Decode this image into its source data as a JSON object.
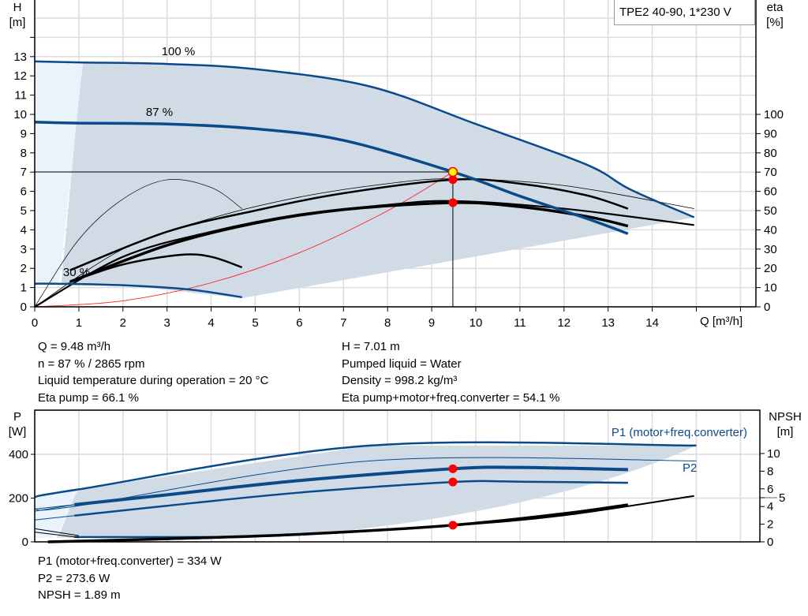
{
  "chart_data": [
    {
      "type": "line",
      "title": "TPE2 40-90, 1*230 V",
      "xlabel": "Q [m³/h]",
      "ylabel_left": {
        "name": "H",
        "unit": "[m]"
      },
      "ylabel_right": {
        "name": "eta",
        "unit": "[%]"
      },
      "xlim": [
        0,
        16.5
      ],
      "ylim_left": [
        0,
        15.9
      ],
      "ylim_right": [
        0,
        159
      ],
      "x_ticks": [
        0,
        1,
        2,
        3,
        4,
        5,
        6,
        7,
        8,
        9,
        10,
        11,
        12,
        13,
        14
      ],
      "y_ticks_left": [
        0,
        1,
        2,
        3,
        4,
        5,
        6,
        7,
        8,
        9,
        10,
        11,
        12,
        13
      ],
      "y_ticks_right": [
        0,
        10,
        20,
        30,
        40,
        50,
        60,
        70,
        80,
        90,
        100
      ],
      "grid": true,
      "speed_curves": [
        {
          "name": "100 %",
          "points": [
            [
              0,
              12.75
            ],
            [
              1,
              12.7
            ],
            [
              3,
              12.62
            ],
            [
              5,
              12.35
            ],
            [
              7.6,
              11.45
            ],
            [
              10,
              9.5
            ],
            [
              12.5,
              7.4
            ],
            [
              13.5,
              6.1
            ],
            [
              14.95,
              4.65
            ]
          ]
        },
        {
          "name": "87 %",
          "points": [
            [
              0,
              9.6
            ],
            [
              0.9,
              9.55
            ],
            [
              3,
              9.5
            ],
            [
              5,
              9.25
            ],
            [
              7,
              8.65
            ],
            [
              9.48,
              7.01
            ],
            [
              11,
              5.75
            ],
            [
              12.5,
              4.6
            ],
            [
              13.45,
              3.8
            ]
          ]
        },
        {
          "name": "30 %",
          "points": [
            [
              0,
              1.2
            ],
            [
              0.5,
              1.2
            ],
            [
              2,
              1.12
            ],
            [
              3.5,
              0.9
            ],
            [
              4.7,
              0.5
            ]
          ]
        }
      ],
      "efficiency_curves": [
        {
          "points": [
            [
              0.8,
              1.9
            ],
            [
              3,
              3.9
            ],
            [
              5,
              5.0
            ],
            [
              7,
              5.9
            ],
            [
              9.5,
              6.61
            ],
            [
              11,
              6.4
            ],
            [
              12.5,
              5.8
            ],
            [
              13.45,
              5.1
            ]
          ]
        },
        {
          "points": [
            [
              0,
              0
            ],
            [
              2,
              3.0
            ],
            [
              4,
              4.6
            ],
            [
              6,
              5.7
            ],
            [
              8,
              6.4
            ],
            [
              9.5,
              6.65
            ],
            [
              12,
              6.3
            ],
            [
              14.95,
              5.1
            ]
          ]
        },
        {
          "points": [
            [
              0.8,
              1.3
            ],
            [
              3,
              3.2
            ],
            [
              5,
              4.35
            ],
            [
              7,
              5.05
            ],
            [
              9.5,
              5.41
            ],
            [
              11,
              5.2
            ],
            [
              12.5,
              4.7
            ],
            [
              13.45,
              4.2
            ]
          ]
        },
        {
          "points": [
            [
              0,
              0
            ],
            [
              2,
              2.6
            ],
            [
              4,
              3.9
            ],
            [
              6,
              4.8
            ],
            [
              8,
              5.3
            ],
            [
              9.5,
              5.5
            ],
            [
              12,
              5.1
            ],
            [
              14.95,
              4.25
            ]
          ]
        },
        {
          "points": [
            [
              0.8,
              1.3
            ],
            [
              2,
              2.2
            ],
            [
              3.3,
              2.7
            ],
            [
              4,
              2.6
            ],
            [
              4.7,
              2.05
            ]
          ]
        },
        {
          "points": [
            [
              0,
              0
            ],
            [
              1,
              3.5
            ],
            [
              2,
              5.6
            ],
            [
              3,
              6.6
            ],
            [
              4,
              6.2
            ],
            [
              4.7,
              5.1
            ]
          ]
        }
      ],
      "system_curve": {
        "points": [
          [
            0,
            0
          ],
          [
            2,
            0.31
          ],
          [
            4,
            1.25
          ],
          [
            6,
            2.81
          ],
          [
            8,
            4.99
          ],
          [
            9.48,
            7.01
          ]
        ]
      },
      "operating_point": {
        "Q": 9.48,
        "H": 7.01,
        "eta_pump": 66.1,
        "eta_total": 54.1
      },
      "curve_labels": [
        "100 %",
        "87 %",
        "30 %"
      ]
    },
    {
      "type": "line",
      "ylabel_left": {
        "name": "P",
        "unit": "[W]"
      },
      "ylabel_right": {
        "name": "NPSH",
        "unit": "[m]"
      },
      "ylim_left": [
        0,
        600
      ],
      "ylim_right": [
        0,
        15
      ],
      "y_ticks_left": [
        0,
        200,
        400
      ],
      "y_ticks_right": [
        0,
        2,
        4,
        5,
        6,
        8,
        10
      ],
      "grid": true,
      "series_labels": [
        "P1 (motor+freq.converter)",
        "P2"
      ],
      "power_curves": [
        {
          "name": "P1 max",
          "points": [
            [
              0,
              205
            ],
            [
              1,
              240
            ],
            [
              7.6,
              440
            ],
            [
              15,
              440
            ]
          ]
        },
        {
          "name": "P2 max",
          "points": [
            [
              0,
              150
            ],
            [
              1,
              165
            ],
            [
              7.6,
              370
            ],
            [
              15,
              370
            ]
          ]
        },
        {
          "name": "P1 87 %",
          "points": [
            [
              0.9,
              170
            ],
            [
              3,
              215
            ],
            [
              6,
              280
            ],
            [
              9.48,
              334
            ],
            [
              11,
              340
            ],
            [
              13.45,
              330
            ]
          ]
        },
        {
          "name": "P2 87 %",
          "points": [
            [
              0.9,
              120
            ],
            [
              3,
              165
            ],
            [
              6,
              225
            ],
            [
              9.48,
              273.6
            ],
            [
              11,
              275
            ],
            [
              13.45,
              270
            ]
          ]
        },
        {
          "name": "P 30 %",
          "points": [
            [
              0.9,
              22
            ],
            [
              4.7,
              22
            ]
          ]
        }
      ],
      "npsh_curves": [
        {
          "points": [
            [
              0.3,
              0
            ],
            [
              3,
              0.35
            ],
            [
              6,
              0.85
            ],
            [
              9.48,
              1.89
            ],
            [
              12,
              3.2
            ],
            [
              13.45,
              4.2
            ]
          ]
        },
        {
          "points": [
            [
              0.3,
              0
            ],
            [
              3,
              0.3
            ],
            [
              6,
              0.8
            ],
            [
              9.48,
              1.85
            ],
            [
              12,
              3.0
            ],
            [
              14.95,
              5.2
            ]
          ]
        }
      ],
      "operating_point": {
        "Q": 9.48,
        "P1": 334,
        "P2": 273.6,
        "NPSH": 1.89
      }
    }
  ],
  "colors": {
    "curve_blue": "#0b4a8a",
    "area": "#d0dbe6",
    "area_light": "#eaf2fb",
    "point_red": "#ff0000",
    "point_yellow": "#ffff00",
    "system_red": "#ff2020"
  },
  "info_top_left": [
    "Q = 9.48 m³/h",
    "n = 87 % / 2865 rpm",
    "Liquid temperature during operation = 20 °C",
    "Eta pump = 66.1 %"
  ],
  "info_top_right": [
    "H = 7.01 m",
    "Pumped liquid = Water",
    "Density = 998.2 kg/m³",
    "Eta pump+motor+freq.converter = 54.1 %"
  ],
  "info_bottom": [
    "P1 (motor+freq.converter) = 334 W",
    "P2 = 273.6 W",
    "NPSH = 1.89 m"
  ]
}
